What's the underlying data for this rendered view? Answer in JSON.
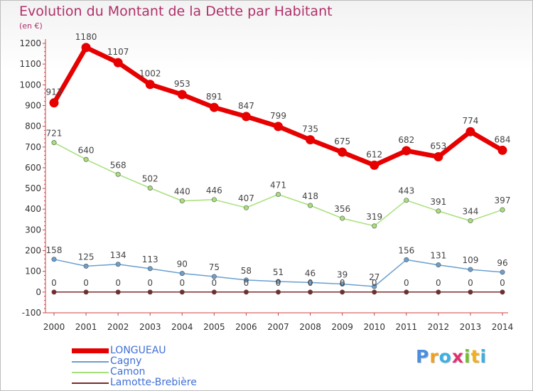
{
  "chart_data": {
    "type": "line",
    "title": "Evolution du Montant de la Dette par Habitant",
    "ylabel": "(en €)",
    "xlabel": "",
    "categories": [
      "2000",
      "2001",
      "2002",
      "2003",
      "2004",
      "2005",
      "2006",
      "2007",
      "2008",
      "2009",
      "2010",
      "2011",
      "2012",
      "2013",
      "2014"
    ],
    "ylim": [
      -100,
      1200
    ],
    "yticks": [
      -100,
      0,
      100,
      200,
      300,
      400,
      500,
      600,
      700,
      800,
      900,
      1000,
      1100,
      1200
    ],
    "grid": false,
    "legend_position": "bottom-left",
    "series": [
      {
        "name": "LONGUEAU",
        "color": "#e60000",
        "values": [
          913,
          1180,
          1107,
          1002,
          953,
          891,
          847,
          799,
          735,
          675,
          612,
          682,
          653,
          774,
          684
        ]
      },
      {
        "name": "Cagny",
        "color": "#6a9fd0",
        "values": [
          158,
          125,
          134,
          113,
          90,
          75,
          58,
          51,
          46,
          39,
          27,
          156,
          131,
          109,
          96
        ]
      },
      {
        "name": "Camon",
        "color": "#a6e07a",
        "values": [
          721,
          640,
          568,
          502,
          440,
          446,
          407,
          471,
          418,
          356,
          319,
          443,
          391,
          344,
          397
        ]
      },
      {
        "name": "Lamotte-Brebière",
        "color": "#7a2a2a",
        "values": [
          0,
          0,
          0,
          0,
          0,
          0,
          0,
          0,
          0,
          0,
          0,
          0,
          0,
          0,
          0
        ]
      }
    ]
  },
  "logo": {
    "letters": [
      {
        "ch": "P",
        "color": "#4a8fe0"
      },
      {
        "ch": "r",
        "color": "#f0a020"
      },
      {
        "ch": "o",
        "color": "#3cb0e0"
      },
      {
        "ch": "x",
        "color": "#e03070"
      },
      {
        "ch": "i",
        "color": "#70c030"
      },
      {
        "ch": "t",
        "color": "#f0b020"
      },
      {
        "ch": "i",
        "color": "#3cb0e0"
      }
    ]
  }
}
